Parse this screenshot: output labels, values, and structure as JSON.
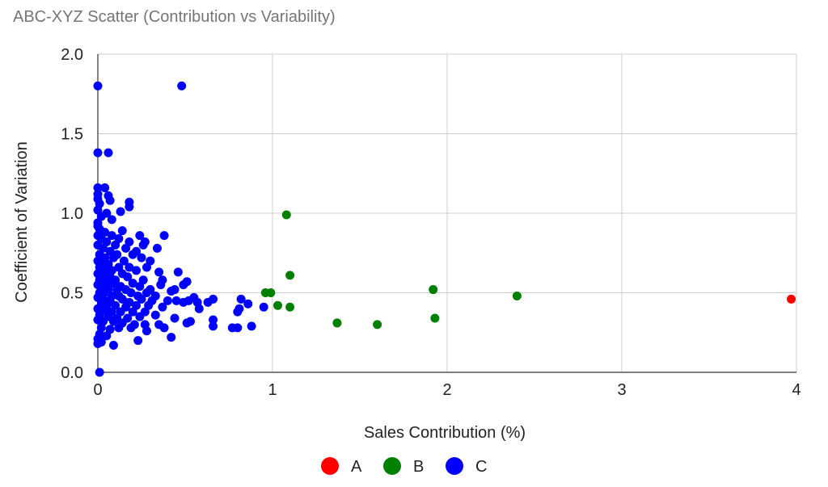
{
  "chart_data": {
    "type": "scatter",
    "title": "ABC-XYZ Scatter (Contribution vs Variability)",
    "xlabel": "Sales Contribution (%)",
    "ylabel": "Coefficient of Variation",
    "xlim": [
      0,
      4
    ],
    "ylim": [
      0,
      2
    ],
    "x_ticks": [
      "0",
      "1",
      "2",
      "3",
      "4"
    ],
    "y_ticks": [
      "0.0",
      "0.5",
      "1.0",
      "1.5",
      "2.0"
    ],
    "grid": true,
    "legend_position": "bottom",
    "series": [
      {
        "name": "A",
        "color": "#ff0000",
        "points": [
          [
            3.97,
            0.46
          ]
        ]
      },
      {
        "name": "B",
        "color": "#008000",
        "points": [
          [
            1.08,
            0.99
          ],
          [
            1.1,
            0.61
          ],
          [
            0.96,
            0.5
          ],
          [
            0.99,
            0.5
          ],
          [
            1.03,
            0.42
          ],
          [
            1.1,
            0.41
          ],
          [
            1.37,
            0.31
          ],
          [
            1.6,
            0.3
          ],
          [
            1.92,
            0.52
          ],
          [
            1.93,
            0.34
          ],
          [
            2.4,
            0.48
          ]
        ]
      },
      {
        "name": "C",
        "color": "#0000ff",
        "points": [
          [
            0.0,
            1.8
          ],
          [
            0.48,
            1.8
          ],
          [
            0.0,
            1.38
          ],
          [
            0.06,
            1.38
          ],
          [
            0.0,
            1.16
          ],
          [
            0.04,
            1.16
          ],
          [
            0.0,
            1.12
          ],
          [
            0.0,
            1.09
          ],
          [
            0.06,
            1.11
          ],
          [
            0.07,
            1.08
          ],
          [
            0.01,
            1.06
          ],
          [
            0.18,
            1.07
          ],
          [
            0.18,
            1.04
          ],
          [
            0.0,
            1.02
          ],
          [
            0.05,
            1.0
          ],
          [
            0.13,
            1.01
          ],
          [
            0.02,
            0.98
          ],
          [
            0.08,
            0.96
          ],
          [
            0.0,
            0.94
          ],
          [
            0.14,
            0.89
          ],
          [
            0.38,
            0.86
          ],
          [
            0.0,
            0.92
          ],
          [
            0.01,
            0.9
          ],
          [
            0.04,
            0.88
          ],
          [
            0.08,
            0.86
          ],
          [
            0.24,
            0.86
          ],
          [
            0.12,
            0.84
          ],
          [
            0.18,
            0.82
          ],
          [
            0.27,
            0.82
          ],
          [
            0.34,
            0.78
          ],
          [
            0.0,
            0.86
          ],
          [
            0.02,
            0.84
          ],
          [
            0.05,
            0.82
          ],
          [
            0.1,
            0.8
          ],
          [
            0.16,
            0.78
          ],
          [
            0.22,
            0.76
          ],
          [
            0.26,
            0.8
          ],
          [
            0.0,
            0.8
          ],
          [
            0.03,
            0.78
          ],
          [
            0.07,
            0.76
          ],
          [
            0.11,
            0.74
          ],
          [
            0.2,
            0.74
          ],
          [
            0.01,
            0.74
          ],
          [
            0.04,
            0.72
          ],
          [
            0.09,
            0.72
          ],
          [
            0.15,
            0.7
          ],
          [
            0.25,
            0.72
          ],
          [
            0.3,
            0.7
          ],
          [
            0.0,
            0.7
          ],
          [
            0.02,
            0.68
          ],
          [
            0.06,
            0.68
          ],
          [
            0.12,
            0.66
          ],
          [
            0.18,
            0.66
          ],
          [
            0.28,
            0.66
          ],
          [
            0.01,
            0.66
          ],
          [
            0.04,
            0.64
          ],
          [
            0.08,
            0.64
          ],
          [
            0.14,
            0.62
          ],
          [
            0.22,
            0.64
          ],
          [
            0.0,
            0.62
          ],
          [
            0.03,
            0.6
          ],
          [
            0.07,
            0.6
          ],
          [
            0.1,
            0.58
          ],
          [
            0.17,
            0.6
          ],
          [
            0.35,
            0.63
          ],
          [
            0.46,
            0.63
          ],
          [
            0.01,
            0.58
          ],
          [
            0.05,
            0.56
          ],
          [
            0.09,
            0.56
          ],
          [
            0.13,
            0.54
          ],
          [
            0.2,
            0.56
          ],
          [
            0.26,
            0.58
          ],
          [
            0.37,
            0.58
          ],
          [
            0.0,
            0.55
          ],
          [
            0.02,
            0.54
          ],
          [
            0.06,
            0.52
          ],
          [
            0.11,
            0.52
          ],
          [
            0.16,
            0.52
          ],
          [
            0.24,
            0.54
          ],
          [
            0.3,
            0.52
          ],
          [
            0.36,
            0.55
          ],
          [
            0.51,
            0.57
          ],
          [
            0.49,
            0.55
          ],
          [
            0.44,
            0.52
          ],
          [
            0.01,
            0.5
          ],
          [
            0.04,
            0.5
          ],
          [
            0.08,
            0.48
          ],
          [
            0.12,
            0.48
          ],
          [
            0.19,
            0.5
          ],
          [
            0.23,
            0.48
          ],
          [
            0.28,
            0.5
          ],
          [
            0.33,
            0.48
          ],
          [
            0.42,
            0.51
          ],
          [
            0.0,
            0.47
          ],
          [
            0.03,
            0.46
          ],
          [
            0.07,
            0.45
          ],
          [
            0.14,
            0.46
          ],
          [
            0.18,
            0.44
          ],
          [
            0.25,
            0.46
          ],
          [
            0.31,
            0.45
          ],
          [
            0.4,
            0.45
          ],
          [
            0.45,
            0.45
          ],
          [
            0.49,
            0.44
          ],
          [
            0.52,
            0.45
          ],
          [
            0.55,
            0.47
          ],
          [
            0.57,
            0.44
          ],
          [
            0.63,
            0.44
          ],
          [
            0.66,
            0.46
          ],
          [
            0.82,
            0.46
          ],
          [
            0.86,
            0.43
          ],
          [
            0.02,
            0.43
          ],
          [
            0.05,
            0.42
          ],
          [
            0.1,
            0.42
          ],
          [
            0.16,
            0.41
          ],
          [
            0.22,
            0.42
          ],
          [
            0.29,
            0.42
          ],
          [
            0.37,
            0.41
          ],
          [
            0.58,
            0.4
          ],
          [
            0.81,
            0.4
          ],
          [
            0.8,
            0.38
          ],
          [
            0.95,
            0.41
          ],
          [
            0.0,
            0.4
          ],
          [
            0.04,
            0.39
          ],
          [
            0.08,
            0.38
          ],
          [
            0.13,
            0.38
          ],
          [
            0.2,
            0.38
          ],
          [
            0.27,
            0.38
          ],
          [
            0.01,
            0.36
          ],
          [
            0.06,
            0.35
          ],
          [
            0.11,
            0.34
          ],
          [
            0.17,
            0.34
          ],
          [
            0.24,
            0.35
          ],
          [
            0.33,
            0.36
          ],
          [
            0.44,
            0.34
          ],
          [
            0.0,
            0.33
          ],
          [
            0.03,
            0.32
          ],
          [
            0.09,
            0.32
          ],
          [
            0.14,
            0.31
          ],
          [
            0.21,
            0.3
          ],
          [
            0.27,
            0.3
          ],
          [
            0.35,
            0.3
          ],
          [
            0.38,
            0.28
          ],
          [
            0.51,
            0.31
          ],
          [
            0.53,
            0.32
          ],
          [
            0.66,
            0.33
          ],
          [
            0.66,
            0.29
          ],
          [
            0.77,
            0.28
          ],
          [
            0.8,
            0.28
          ],
          [
            0.88,
            0.29
          ],
          [
            0.02,
            0.28
          ],
          [
            0.07,
            0.27
          ],
          [
            0.12,
            0.28
          ],
          [
            0.19,
            0.28
          ],
          [
            0.28,
            0.26
          ],
          [
            0.01,
            0.24
          ],
          [
            0.05,
            0.23
          ],
          [
            0.42,
            0.22
          ],
          [
            0.0,
            0.21
          ],
          [
            0.02,
            0.19
          ],
          [
            0.23,
            0.2
          ],
          [
            0.0,
            0.18
          ],
          [
            0.09,
            0.17
          ],
          [
            0.01,
            0.0
          ]
        ]
      }
    ]
  }
}
